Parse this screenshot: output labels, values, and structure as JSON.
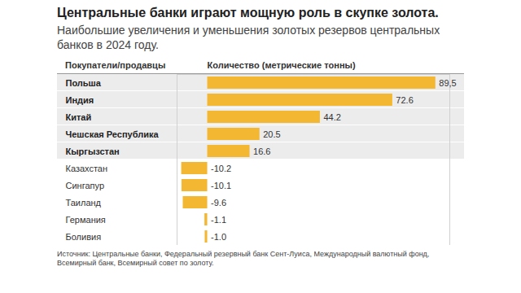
{
  "chart_data": {
    "type": "bar",
    "orientation": "horizontal",
    "title": "Центральные банки играют мощную роль в скупке золота.",
    "subtitle": "Наибольшие увеличения и уменьшения золотых резервов центральных банков в 2024 году.",
    "ylabel": "Покупатели/продавцы",
    "xlabel": "Количество (метрические тонны)",
    "caption": "Источник: Центральные банки, Федеральный резервный банк Сент-Луиса, Международный валютный фонд, Всемирный банк, Всемирный совет по золоту.",
    "categories": [
      "Польша",
      "Индия",
      "Китай",
      "Чешская Республика",
      "Кыргызстан",
      "Казахстан",
      "Сингапур",
      "Таиланд",
      "Германия",
      "Боливия"
    ],
    "values": [
      89.5,
      72.6,
      44.2,
      20.5,
      16.6,
      -10.2,
      -10.1,
      -9.6,
      -1.1,
      -1.0
    ],
    "value_labels": [
      "89,5",
      "72.6",
      "44.2",
      "20.5",
      "16.6",
      "-10.2",
      "-10.1",
      "-9.6",
      "-1.1",
      "-1.0"
    ],
    "color": "#f4b731",
    "xlim": [
      -12,
      95
    ],
    "xticks": [],
    "grid": false,
    "data_labels": true,
    "tick_labels": "y"
  }
}
